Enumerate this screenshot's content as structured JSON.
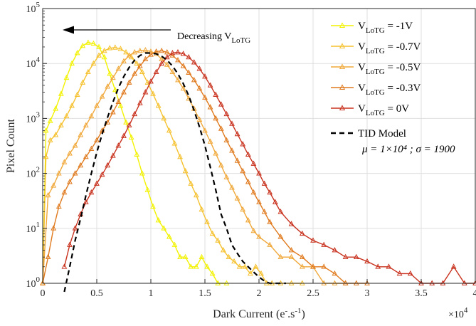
{
  "chart_data": {
    "type": "line",
    "xlabel": {
      "main": "Dark Current (e",
      "sup": "-",
      "rest": ".s",
      "sup2": "-1",
      "end": ")"
    },
    "ylabel": "Pixel Count",
    "x_multiplier": {
      "base": "×10",
      "exp": "4"
    },
    "xlim": [
      0,
      40000
    ],
    "ylim": [
      1,
      100000
    ],
    "yscale": "log",
    "x_ticks": [
      0,
      5000,
      10000,
      15000,
      20000,
      25000,
      30000,
      35000,
      40000
    ],
    "x_tick_labels": [
      "0",
      "0.5",
      "1",
      "1.5",
      "2",
      "2.5",
      "3",
      "3.5",
      "4"
    ],
    "y_ticks": [
      1,
      10,
      100,
      1000,
      10000,
      100000
    ],
    "y_tick_labels": [
      {
        "base": "10",
        "exp": "0"
      },
      {
        "base": "10",
        "exp": "1"
      },
      {
        "base": "10",
        "exp": "2"
      },
      {
        "base": "10",
        "exp": "3"
      },
      {
        "base": "10",
        "exp": "4"
      },
      {
        "base": "10",
        "exp": "5"
      }
    ],
    "grid": true,
    "legend_position": "top-right",
    "annotation": {
      "text": "Decreasing V",
      "sub": "LoTG"
    },
    "series": [
      {
        "name": "V_LoTG = -1V",
        "label": {
          "pre": "V",
          "sub": "LoTG",
          "post": " = -1V"
        },
        "color": "#f2f200",
        "marker": "triangle",
        "x": [
          0,
          300,
          700,
          1200,
          1700,
          2200,
          2700,
          3200,
          3700,
          4200,
          4700,
          5200,
          5700,
          6200,
          6700,
          7200,
          7700,
          8200,
          8700,
          9200,
          9700,
          10200,
          10700,
          11200,
          11700,
          12200,
          12700,
          13200,
          13700,
          14200,
          14700,
          15200,
          15700,
          16200,
          17000
        ],
        "y": [
          1,
          600,
          900,
          1500,
          2800,
          5500,
          10000,
          15500,
          21000,
          24000,
          23000,
          20000,
          13000,
          6500,
          3300,
          1700,
          850,
          450,
          220,
          100,
          50,
          25,
          14,
          10,
          7,
          5,
          3,
          3,
          2,
          2,
          3,
          2,
          1.5,
          1,
          1
        ]
      },
      {
        "name": "V_LoTG = -0.7V",
        "label": {
          "pre": "V",
          "sub": "LoTG",
          "post": " = -0.7V"
        },
        "color": "#f5c12e",
        "marker": "triangle",
        "x": [
          0,
          300,
          700,
          1200,
          1700,
          2200,
          2700,
          3200,
          3700,
          4200,
          4700,
          5200,
          5700,
          6200,
          6700,
          7200,
          7700,
          8200,
          8700,
          9200,
          9700,
          10200,
          10700,
          11200,
          11700,
          12200,
          12700,
          13200,
          13700,
          14200,
          14700,
          15200,
          15700,
          16200,
          16700,
          17200,
          17700,
          18200,
          18700,
          19200,
          19700,
          20200,
          20700,
          21200,
          22000,
          23000,
          24000
        ],
        "y": [
          1,
          200,
          400,
          500,
          750,
          1100,
          1700,
          2700,
          4500,
          7000,
          10000,
          14000,
          17000,
          19000,
          19500,
          18500,
          16000,
          13000,
          10000,
          7000,
          4500,
          2800,
          1700,
          1000,
          600,
          350,
          200,
          110,
          65,
          40,
          22,
          13,
          8,
          6,
          4,
          3,
          2.5,
          2,
          2,
          1.5,
          2,
          1.5,
          1,
          1,
          1,
          1,
          1
        ]
      },
      {
        "name": "V_LoTG = -0.5V",
        "label": {
          "pre": "V",
          "sub": "LoTG",
          "post": " = -0.5V"
        },
        "color": "#f0a83a",
        "marker": "triangle",
        "x": [
          0,
          500,
          1000,
          1500,
          2000,
          2500,
          3000,
          3500,
          4000,
          4500,
          5000,
          5500,
          6000,
          6500,
          7000,
          7500,
          8000,
          8500,
          9000,
          9500,
          10000,
          10500,
          11000,
          11500,
          12000,
          12500,
          13000,
          13500,
          14000,
          14500,
          15000,
          15500,
          16000,
          16500,
          17000,
          17500,
          18000,
          18500,
          19000,
          19500,
          20000,
          21000,
          22000,
          23000,
          24000,
          25000,
          26000,
          27000,
          28000
        ],
        "y": [
          1,
          40,
          60,
          100,
          160,
          230,
          320,
          500,
          750,
          1100,
          1700,
          2500,
          3800,
          5500,
          8000,
          11000,
          14000,
          16000,
          17000,
          17500,
          16500,
          15000,
          12000,
          9500,
          7000,
          5000,
          3500,
          2300,
          1500,
          950,
          600,
          380,
          230,
          140,
          85,
          55,
          35,
          22,
          14,
          9,
          7,
          5,
          3,
          3,
          2,
          2,
          1,
          1,
          1
        ]
      },
      {
        "name": "V_LoTG = -0.3V",
        "label": {
          "pre": "V",
          "sub": "LoTG",
          "post": " = -0.3V"
        },
        "color": "#e07a1e",
        "marker": "triangle",
        "x": [
          0,
          500,
          1000,
          1500,
          2000,
          2500,
          3000,
          3500,
          4000,
          4500,
          5000,
          5500,
          6000,
          6500,
          7000,
          7500,
          8000,
          8500,
          9000,
          9500,
          10000,
          10500,
          11000,
          11500,
          12000,
          12500,
          13000,
          13500,
          14000,
          14500,
          15000,
          15500,
          16000,
          16500,
          17000,
          17500,
          18000,
          18500,
          19000,
          19500,
          20000,
          20500,
          21000,
          22000,
          23000,
          24000,
          25000,
          26000,
          27000,
          28000,
          29000,
          30000
        ],
        "y": [
          1,
          3,
          10,
          25,
          45,
          70,
          100,
          140,
          200,
          280,
          400,
          600,
          850,
          1300,
          2000,
          3000,
          4500,
          6500,
          9000,
          12000,
          14500,
          16500,
          17000,
          16000,
          14000,
          11500,
          9000,
          6800,
          5000,
          3500,
          2400,
          1600,
          1000,
          650,
          400,
          260,
          170,
          110,
          70,
          45,
          30,
          20,
          13,
          7,
          4,
          3,
          2,
          2,
          1.5,
          1,
          1,
          1
        ]
      },
      {
        "name": "V_LoTG = 0V",
        "label": {
          "pre": "V",
          "sub": "LoTG",
          "post": " = 0V"
        },
        "color": "#c8321e",
        "marker": "triangle",
        "x": [
          2000,
          2500,
          3000,
          3500,
          4000,
          4500,
          5000,
          5500,
          6000,
          6500,
          7000,
          7500,
          8000,
          8500,
          9000,
          9500,
          10000,
          10500,
          11000,
          11500,
          12000,
          12500,
          13000,
          13500,
          14000,
          14500,
          15000,
          15500,
          16000,
          16500,
          17000,
          17500,
          18000,
          18500,
          19000,
          19500,
          20000,
          20500,
          21000,
          21500,
          22000,
          23000,
          24000,
          25000,
          26000,
          27000,
          28000,
          29000,
          30000,
          31000,
          32000,
          33000,
          34000,
          35000,
          36000,
          37000,
          38000,
          39000,
          40000
        ],
        "y": [
          2,
          5,
          10,
          18,
          30,
          45,
          65,
          95,
          140,
          210,
          320,
          480,
          750,
          1200,
          1900,
          3000,
          4700,
          7000,
          10000,
          13000,
          15500,
          16000,
          15000,
          13000,
          10500,
          8000,
          5800,
          4000,
          2700,
          1800,
          1200,
          800,
          520,
          340,
          220,
          150,
          100,
          65,
          45,
          30,
          20,
          12,
          8,
          6,
          5,
          4,
          3,
          3,
          2.5,
          2,
          2,
          1.5,
          1.5,
          1,
          1,
          1,
          2,
          1,
          1
        ]
      },
      {
        "name": "TID Model",
        "label": {
          "pre": "TID Model",
          "sub": "",
          "post": ""
        },
        "sublabel": "μ = 1×10⁴ ; σ = 1900",
        "color": "#000000",
        "marker": "none",
        "dashed": true,
        "x": [
          2000,
          2500,
          3000,
          3500,
          4000,
          4500,
          5000,
          5500,
          6000,
          6500,
          7000,
          7500,
          8000,
          8500,
          9000,
          9500,
          10000,
          10500,
          11000,
          11500,
          12000,
          12500,
          13000,
          13500,
          14000,
          14500,
          15000,
          15500,
          16000,
          16500,
          17000,
          17500,
          18000,
          18500,
          19000,
          19500,
          20000,
          20500,
          21000,
          21500,
          22000,
          22500
        ],
        "y": [
          0.7,
          2,
          6,
          15,
          40,
          100,
          240,
          520,
          1050,
          2000,
          3600,
          5800,
          8500,
          11500,
          14000,
          15500,
          15500,
          15000,
          13500,
          11500,
          9000,
          6500,
          4300,
          2600,
          1400,
          700,
          320,
          130,
          50,
          18,
          10,
          5,
          3.5,
          2.5,
          2,
          1.6,
          1.3,
          1.1,
          1,
          1,
          1,
          1
        ]
      }
    ]
  }
}
